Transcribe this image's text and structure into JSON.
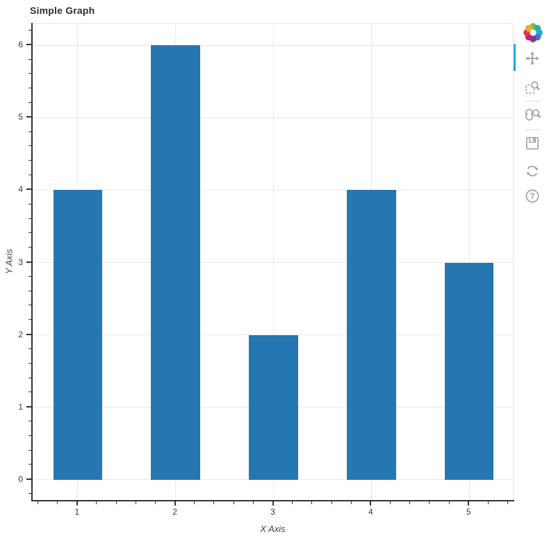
{
  "chart_data": {
    "type": "bar",
    "title": "Simple Graph",
    "xlabel": "X Axis",
    "ylabel": "Y Axis",
    "x": [
      1,
      2,
      3,
      4,
      5
    ],
    "values": [
      4,
      6,
      2,
      4,
      3
    ],
    "bar_width": 0.5,
    "xlim": [
      0.54,
      5.46
    ],
    "ylim": [
      -0.3,
      6.3
    ],
    "x_ticks": [
      1,
      2,
      3,
      4,
      5
    ],
    "y_ticks": [
      0,
      1,
      2,
      3,
      4,
      5,
      6
    ],
    "minor_tick_step": 0.2,
    "grid": true,
    "legend_position": "none",
    "bar_color": "#2577b2",
    "grid_color": "#e8e8e8",
    "axis_color": "#333333",
    "outline_color": "#e5e5e5"
  },
  "toolbar": {
    "orientation": "vertical-right",
    "tools": [
      "pan",
      "box-zoom",
      "wheel-zoom",
      "save",
      "reset",
      "help"
    ],
    "active_tool": "pan",
    "active_indicator_color": "#26aae1",
    "icon_color": "#a2a2a2",
    "help_glyph": "?",
    "logo_colors": [
      "#76c043",
      "#2db39b",
      "#21aade",
      "#3d7ac0",
      "#6f3c9e",
      "#c51e78",
      "#e0393e",
      "#f4a933"
    ]
  }
}
